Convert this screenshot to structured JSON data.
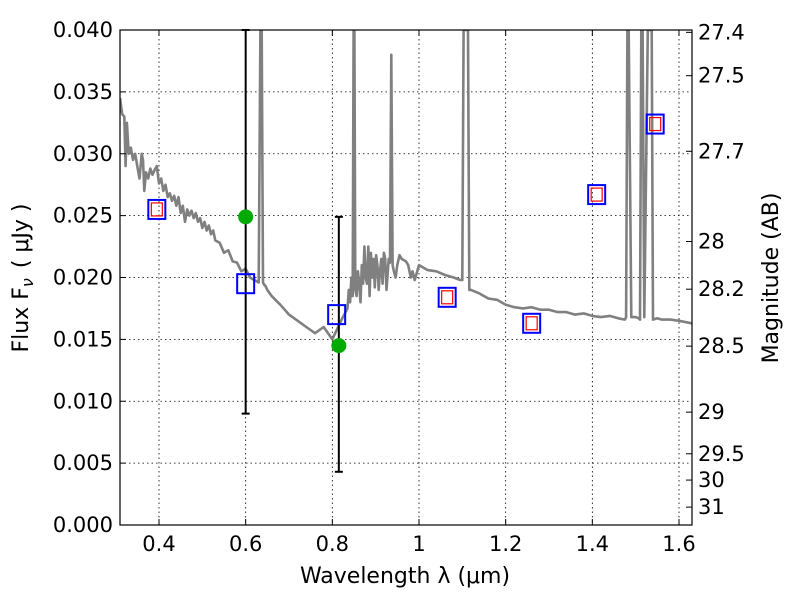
{
  "chart_data": {
    "type": "scatter",
    "xlabel": "Wavelength  λ (μm)",
    "ylabel_left": "Flux  F",
    "ylabel_sub": "ν",
    "ylabel_units": "( μJy )",
    "ylabel_right": "Magnitude (AB)",
    "xlim": [
      0.31,
      1.63
    ],
    "ylim": [
      0,
      0.04
    ],
    "grid": true,
    "x_ticks": [
      {
        "value": 0.4,
        "label": "0.4"
      },
      {
        "value": 0.6,
        "label": "0.6"
      },
      {
        "value": 0.8,
        "label": "0.8"
      },
      {
        "value": 1.0,
        "label": "1"
      },
      {
        "value": 1.2,
        "label": "1.2"
      },
      {
        "value": 1.4,
        "label": "1.4"
      },
      {
        "value": 1.6,
        "label": "1.6"
      }
    ],
    "y_ticks": [
      {
        "value": 0.0,
        "label": "0.000"
      },
      {
        "value": 0.005,
        "label": "0.005"
      },
      {
        "value": 0.01,
        "label": "0.010"
      },
      {
        "value": 0.015,
        "label": "0.015"
      },
      {
        "value": 0.02,
        "label": "0.020"
      },
      {
        "value": 0.025,
        "label": "0.025"
      },
      {
        "value": 0.03,
        "label": "0.030"
      },
      {
        "value": 0.035,
        "label": "0.035"
      },
      {
        "value": 0.04,
        "label": "0.040"
      }
    ],
    "mag_ticks": [
      {
        "mag": 27.4,
        "label": "27.4"
      },
      {
        "mag": 27.5,
        "label": "27.5"
      },
      {
        "mag": 27.7,
        "label": "27.7"
      },
      {
        "mag": 28.0,
        "label": "28"
      },
      {
        "mag": 28.2,
        "label": "28.2"
      },
      {
        "mag": 28.5,
        "label": "28.5"
      },
      {
        "mag": 29.0,
        "label": "29"
      },
      {
        "mag": 29.5,
        "label": "29.5"
      },
      {
        "mag": 30.0,
        "label": "30"
      },
      {
        "mag": 31.0,
        "label": "31"
      }
    ],
    "series": [
      {
        "name": "model-spectrum",
        "kind": "line",
        "color": "#808080",
        "x": [
          0.31,
          0.315,
          0.32,
          0.323,
          0.326,
          0.33,
          0.335,
          0.34,
          0.345,
          0.35,
          0.355,
          0.36,
          0.363,
          0.366,
          0.37,
          0.375,
          0.38,
          0.385,
          0.39,
          0.395,
          0.4,
          0.405,
          0.41,
          0.415,
          0.42,
          0.425,
          0.43,
          0.435,
          0.44,
          0.445,
          0.45,
          0.455,
          0.46,
          0.465,
          0.47,
          0.475,
          0.48,
          0.485,
          0.49,
          0.495,
          0.5,
          0.505,
          0.51,
          0.515,
          0.52,
          0.525,
          0.53,
          0.54,
          0.55,
          0.56,
          0.57,
          0.58,
          0.59,
          0.6,
          0.61,
          0.62,
          0.63,
          0.634,
          0.637,
          0.64,
          0.643,
          0.646,
          0.65,
          0.66,
          0.68,
          0.7,
          0.72,
          0.74,
          0.76,
          0.78,
          0.8,
          0.82,
          0.835,
          0.838,
          0.841,
          0.844,
          0.847,
          0.849,
          0.851,
          0.853,
          0.856,
          0.859,
          0.862,
          0.865,
          0.868,
          0.871,
          0.874,
          0.877,
          0.88,
          0.883,
          0.886,
          0.889,
          0.892,
          0.895,
          0.898,
          0.901,
          0.904,
          0.907,
          0.91,
          0.913,
          0.916,
          0.919,
          0.922,
          0.925,
          0.93,
          0.933,
          0.936,
          0.939,
          0.942,
          0.946,
          0.95,
          0.955,
          0.96,
          0.97,
          0.975,
          0.978,
          0.981,
          0.985,
          0.99,
          1.0,
          1.02,
          1.04,
          1.06,
          1.08,
          1.095,
          1.1,
          1.103,
          1.106,
          1.11,
          1.113,
          1.116,
          1.12,
          1.14,
          1.16,
          1.18,
          1.2,
          1.22,
          1.24,
          1.26,
          1.28,
          1.3,
          1.32,
          1.34,
          1.36,
          1.38,
          1.4,
          1.42,
          1.44,
          1.46,
          1.475,
          1.478,
          1.481,
          1.484,
          1.49,
          1.5,
          1.507,
          1.51,
          1.513,
          1.516,
          1.52,
          1.528,
          1.531,
          1.534,
          1.537,
          1.54,
          1.55,
          1.56,
          1.58,
          1.6,
          1.63
        ],
        "y": [
          0.0345,
          0.0332,
          0.033,
          0.029,
          0.0325,
          0.03,
          0.0305,
          0.0295,
          0.03,
          0.029,
          0.028,
          0.03,
          0.0295,
          0.027,
          0.0285,
          0.028,
          0.0288,
          0.0283,
          0.0287,
          0.029,
          0.0276,
          0.028,
          0.027,
          0.0275,
          0.0265,
          0.0268,
          0.0262,
          0.0266,
          0.0258,
          0.0265,
          0.0252,
          0.0258,
          0.0245,
          0.0255,
          0.025,
          0.0254,
          0.0248,
          0.0252,
          0.0245,
          0.0248,
          0.024,
          0.0245,
          0.0238,
          0.0242,
          0.0235,
          0.0238,
          0.023,
          0.0228,
          0.022,
          0.0222,
          0.0213,
          0.0212,
          0.0205,
          0.0207,
          0.02,
          0.0198,
          0.0196,
          0.04,
          0.04,
          0.0196,
          0.0194,
          0.0193,
          0.019,
          0.0185,
          0.0178,
          0.017,
          0.0165,
          0.016,
          0.0155,
          0.016,
          0.015,
          0.0165,
          0.0175,
          0.019,
          0.018,
          0.02,
          0.0185,
          0.04,
          0.04,
          0.019,
          0.0185,
          0.0205,
          0.0195,
          0.018,
          0.021,
          0.0195,
          0.0225,
          0.02,
          0.0195,
          0.0225,
          0.0185,
          0.022,
          0.02,
          0.0215,
          0.0192,
          0.0218,
          0.021,
          0.019,
          0.0205,
          0.0215,
          0.0195,
          0.022,
          0.0215,
          0.019,
          0.0215,
          0.0212,
          0.038,
          0.021,
          0.0205,
          0.02,
          0.021,
          0.0218,
          0.0215,
          0.0213,
          0.021,
          0.0205,
          0.02,
          0.0205,
          0.0198,
          0.021,
          0.0206,
          0.0205,
          0.0202,
          0.02,
          0.0198,
          0.0198,
          0.04,
          0.04,
          0.04,
          0.04,
          0.019,
          0.019,
          0.0187,
          0.0183,
          0.0182,
          0.0178,
          0.0176,
          0.0175,
          0.0176,
          0.0174,
          0.0174,
          0.0172,
          0.0172,
          0.017,
          0.0171,
          0.0169,
          0.0168,
          0.0169,
          0.0167,
          0.0166,
          0.0168,
          0.04,
          0.04,
          0.0168,
          0.0168,
          0.0167,
          0.0166,
          0.04,
          0.04,
          0.0168,
          0.04,
          0.04,
          0.04,
          0.04,
          0.0166,
          0.0167,
          0.0166,
          0.0166,
          0.0165,
          0.0163
        ]
      },
      {
        "name": "model-photometry",
        "kind": "scatter",
        "marker": "square",
        "color": "#0000ff",
        "x": [
          0.395,
          0.6,
          0.81,
          1.065,
          1.26,
          1.41,
          1.545
        ],
        "y": [
          0.0255,
          0.0195,
          0.017,
          0.0184,
          0.0163,
          0.0267,
          0.0324
        ]
      },
      {
        "name": "observed-photometry",
        "kind": "scatter",
        "marker": "square",
        "color": "#ff0000",
        "x": [
          0.395,
          1.065,
          1.26,
          1.41,
          1.545
        ],
        "y": [
          0.0255,
          0.0184,
          0.0163,
          0.0267,
          0.0324
        ]
      },
      {
        "name": "observed-detections",
        "kind": "scatter",
        "marker": "circle",
        "color": "#00aa00",
        "x": [
          0.6,
          0.815
        ],
        "y": [
          0.0249,
          0.0145
        ]
      },
      {
        "name": "error-bars",
        "kind": "errorbar",
        "color": "#000000",
        "x": [
          0.6,
          0.815
        ],
        "ylow": [
          0.009,
          0.0043
        ],
        "yhigh": [
          0.04,
          0.0249
        ]
      }
    ]
  }
}
